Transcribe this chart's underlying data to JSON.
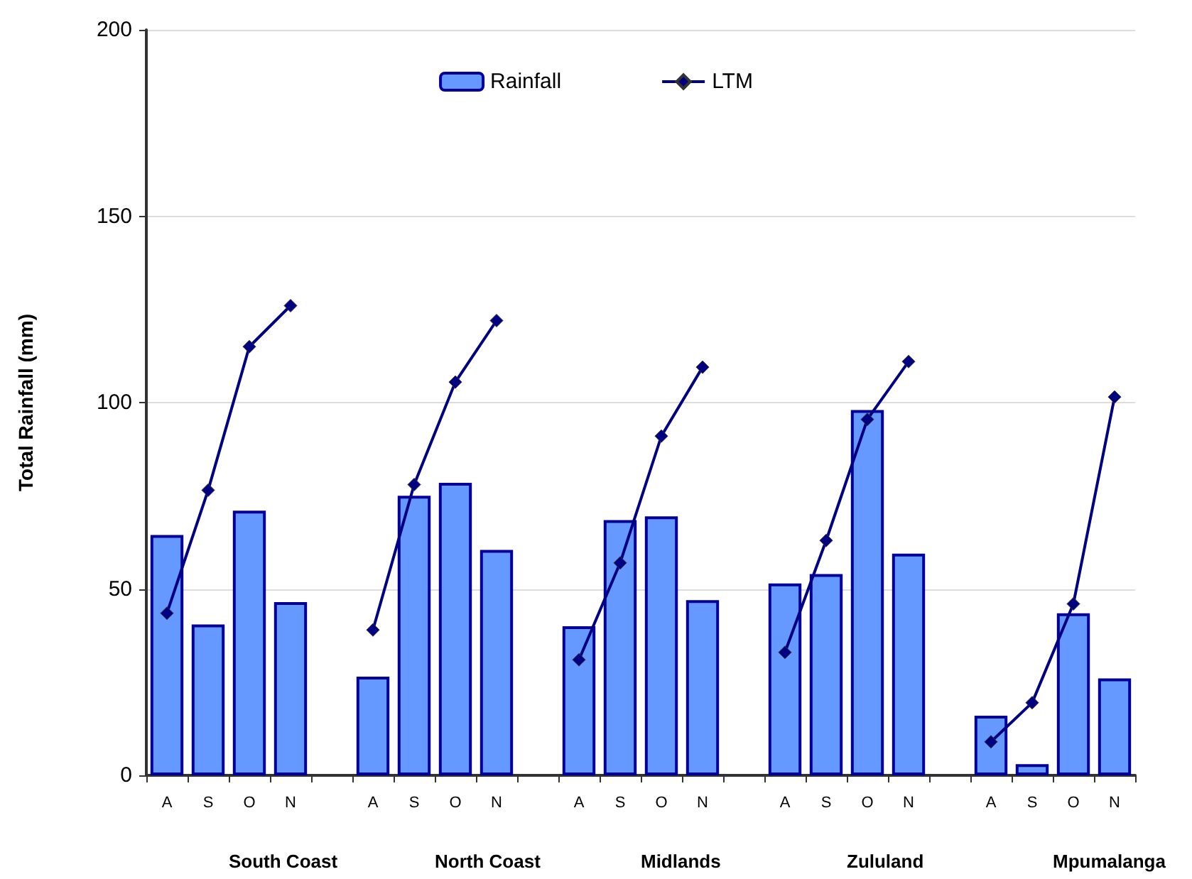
{
  "chart_data": {
    "type": "bar",
    "ylabel": "Total Rainfall (mm)",
    "categories": [
      "A",
      "S",
      "O",
      "N",
      null,
      "A",
      "S",
      "O",
      "N",
      null,
      "A",
      "S",
      "O",
      "N",
      null,
      "A",
      "S",
      "O",
      "N",
      null,
      "A",
      "S",
      "O",
      "N"
    ],
    "series": [
      {
        "name": "Rainfall",
        "color": "#6699ff",
        "values": [
          64.5,
          40.5,
          71,
          46.5,
          null,
          26.5,
          75,
          78.5,
          60.5,
          null,
          40,
          68.5,
          69.5,
          47,
          null,
          51.5,
          54,
          98,
          59.5,
          null,
          16,
          3,
          43.5,
          26
        ]
      },
      {
        "name": "LTM",
        "type": "line",
        "color": "#000080",
        "values": [
          43.5,
          76.5,
          115,
          126,
          null,
          39,
          78,
          105.5,
          122,
          null,
          31,
          57,
          91,
          109.5,
          null,
          33,
          63,
          95.5,
          111,
          null,
          9,
          19.5,
          46,
          101.5
        ]
      }
    ],
    "annotations": [
      "South Coast",
      "North Coast",
      "Midlands",
      "Zululand",
      "Mpumalanga"
    ],
    "ylim": [
      0,
      200
    ],
    "yticks": [
      0,
      50,
      100,
      150,
      200
    ],
    "grid": "y",
    "legend": "top",
    "marker": "diamond",
    "line_style": "solid"
  }
}
